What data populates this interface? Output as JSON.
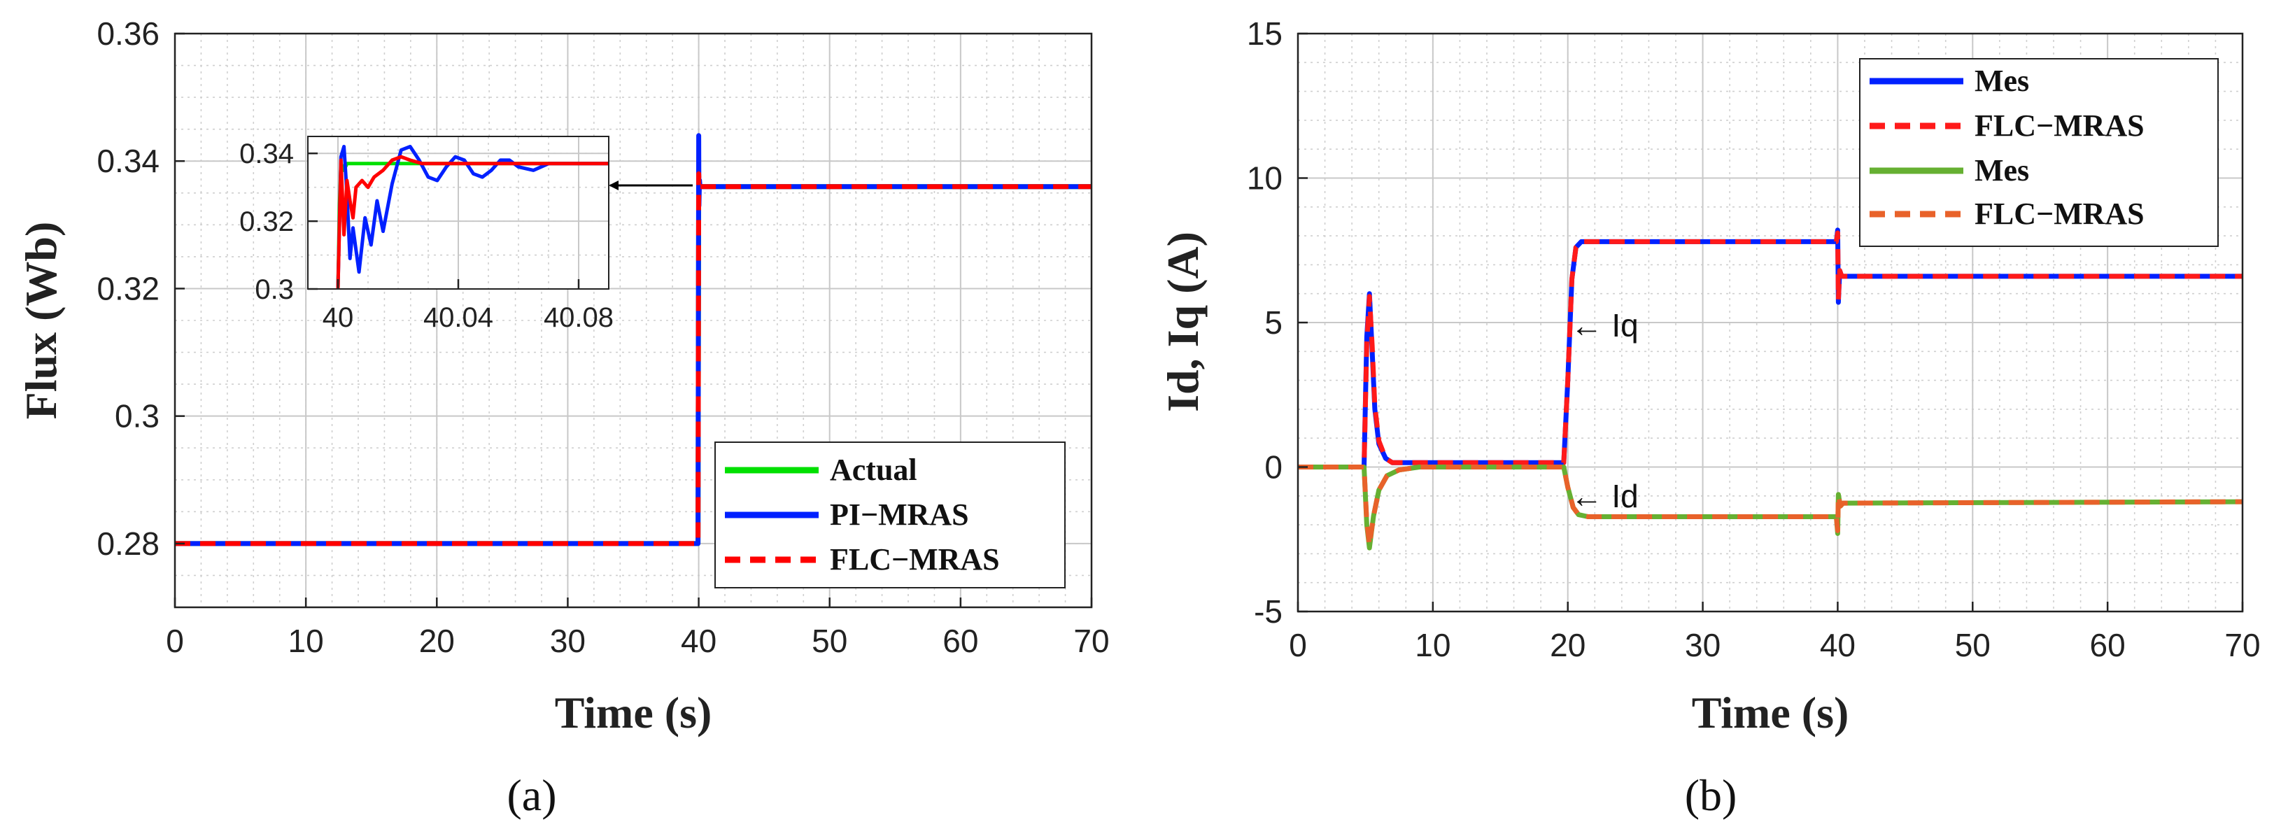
{
  "chart_data": [
    {
      "type": "line",
      "panel_label": "(a)",
      "xlabel": "Time (s)",
      "ylabel": "Flux (Wb)",
      "xlim": [
        0,
        70
      ],
      "ylim": [
        0.27,
        0.36
      ],
      "xticks": [
        0,
        10,
        20,
        30,
        40,
        50,
        60,
        70
      ],
      "yticks": [
        0.28,
        0.3,
        0.32,
        0.34,
        0.36
      ],
      "ytick_labels": [
        "0.28",
        "0.3",
        "0.32",
        "0.34",
        "0.36"
      ],
      "grid": true,
      "legend_position": "bottom-right",
      "series": [
        {
          "name": "Actual",
          "color": "#00e000",
          "dash": "solid",
          "x": [
            0,
            39.95,
            40.0,
            40.03,
            70
          ],
          "y": [
            0.28,
            0.28,
            0.336,
            0.336,
            0.336
          ]
        },
        {
          "name": "PI−MRAS",
          "color": "#0020ff",
          "dash": "solid",
          "x": [
            0,
            39.95,
            40.0,
            40.02,
            40.06,
            40.1,
            70
          ],
          "y": [
            0.28,
            0.28,
            0.344,
            0.333,
            0.337,
            0.336,
            0.336
          ]
        },
        {
          "name": "FLC−MRAS",
          "color": "#ff0000",
          "dash": "dashed",
          "x": [
            0,
            39.95,
            40.0,
            40.05,
            70
          ],
          "y": [
            0.28,
            0.28,
            0.338,
            0.336,
            0.336
          ]
        }
      ],
      "inset": {
        "xlim": [
          39.99,
          40.09
        ],
        "ylim": [
          0.3,
          0.345
        ],
        "xticks": [
          40,
          40.04,
          40.08
        ],
        "xtick_labels": [
          "40",
          "40.04",
          "40.08"
        ],
        "yticks": [
          0.3,
          0.32,
          0.34
        ],
        "ytick_labels": [
          "0.3",
          "0.32",
          "0.34"
        ],
        "series": [
          {
            "name": "Actual",
            "color": "#00e000",
            "x": [
              40.0,
              40.0005,
              40.001,
              40.002,
              40.003,
              40.09
            ],
            "y": [
              0.3,
              0.325,
              0.337,
              0.335,
              0.337,
              0.337
            ]
          },
          {
            "name": "PI−MRAS",
            "color": "#0020ff",
            "x": [
              40.0,
              40.001,
              40.002,
              40.003,
              40.004,
              40.005,
              40.007,
              40.009,
              40.011,
              40.013,
              40.015,
              40.018,
              40.021,
              40.024,
              40.027,
              40.03,
              40.033,
              40.036,
              40.039,
              40.042,
              40.045,
              40.048,
              40.051,
              40.054,
              40.057,
              40.06,
              40.065,
              40.07,
              40.08,
              40.09
            ],
            "y": [
              0.3,
              0.339,
              0.342,
              0.328,
              0.309,
              0.318,
              0.305,
              0.321,
              0.313,
              0.326,
              0.317,
              0.331,
              0.341,
              0.342,
              0.338,
              0.333,
              0.332,
              0.336,
              0.339,
              0.338,
              0.334,
              0.333,
              0.335,
              0.338,
              0.338,
              0.336,
              0.335,
              0.337,
              0.337,
              0.337
            ]
          },
          {
            "name": "FLC−MRAS",
            "color": "#ff0000",
            "x": [
              40.0,
              40.001,
              40.002,
              40.003,
              40.004,
              40.005,
              40.006,
              40.008,
              40.01,
              40.012,
              40.015,
              40.018,
              40.021,
              40.024,
              40.028,
              40.033,
              40.04,
              40.05,
              40.09
            ],
            "y": [
              0.3,
              0.338,
              0.316,
              0.332,
              0.326,
              0.321,
              0.33,
              0.332,
              0.33,
              0.333,
              0.335,
              0.338,
              0.339,
              0.338,
              0.337,
              0.337,
              0.337,
              0.337,
              0.337
            ]
          }
        ]
      }
    },
    {
      "type": "line",
      "panel_label": "(b)",
      "xlabel": "Time (s)",
      "ylabel": "Id, Iq (A)",
      "xlim": [
        0,
        70
      ],
      "ylim": [
        -5,
        15
      ],
      "xticks": [
        0,
        10,
        20,
        30,
        40,
        50,
        60,
        70
      ],
      "yticks": [
        -5,
        0,
        5,
        10,
        15
      ],
      "ytick_labels": [
        "-5",
        "0",
        "5",
        "10",
        "15"
      ],
      "grid": true,
      "legend_position": "top-right",
      "annotations": [
        {
          "text": "← Iq",
          "x": 20.2,
          "y": 4.9
        },
        {
          "text": "← Id",
          "x": 20.2,
          "y": -1.0
        }
      ],
      "series": [
        {
          "name": "Mes",
          "color": "#0020ff",
          "dash": "solid",
          "x": [
            0,
            4.9,
            5.1,
            5.3,
            5.5,
            5.7,
            6.0,
            6.5,
            7.0,
            8.0,
            19.7,
            20.0,
            20.3,
            20.6,
            21.0,
            39.9,
            40.0,
            40.05,
            40.15,
            40.3,
            70
          ],
          "y": [
            0,
            0,
            4.5,
            6.0,
            4.0,
            2.0,
            0.8,
            0.3,
            0.15,
            0.15,
            0.15,
            3.0,
            6.5,
            7.6,
            7.8,
            7.8,
            8.2,
            5.7,
            6.8,
            6.6,
            6.6
          ]
        },
        {
          "name": "FLC−MRAS",
          "color": "#ff1a1a",
          "dash": "dashed",
          "x": [
            0,
            4.9,
            5.1,
            5.3,
            5.5,
            5.7,
            6.0,
            6.5,
            7.0,
            8.0,
            19.7,
            20.0,
            20.3,
            20.6,
            21.0,
            39.9,
            40.0,
            40.05,
            40.15,
            40.3,
            70
          ],
          "y": [
            0,
            0,
            4.3,
            5.9,
            4.2,
            2.1,
            0.9,
            0.3,
            0.15,
            0.15,
            0.15,
            3.0,
            6.5,
            7.6,
            7.8,
            7.8,
            8.1,
            5.8,
            6.8,
            6.6,
            6.6
          ]
        },
        {
          "name": "Mes",
          "color": "#66b032",
          "dash": "solid",
          "x": [
            0,
            4.9,
            5.1,
            5.3,
            5.6,
            6.0,
            6.6,
            7.5,
            9.0,
            19.7,
            20.0,
            20.4,
            20.8,
            21.5,
            39.9,
            40.0,
            40.05,
            40.2,
            40.4,
            70
          ],
          "y": [
            0,
            0,
            -2.0,
            -2.8,
            -1.7,
            -0.8,
            -0.3,
            -0.1,
            0,
            0,
            -0.7,
            -1.4,
            -1.65,
            -1.72,
            -1.72,
            -2.3,
            -0.95,
            -1.35,
            -1.25,
            -1.2
          ]
        },
        {
          "name": "FLC−MRAS",
          "color": "#e8622a",
          "dash": "dashed",
          "x": [
            0,
            4.9,
            5.1,
            5.3,
            5.6,
            6.0,
            6.6,
            7.5,
            9.0,
            19.7,
            20.0,
            20.4,
            20.8,
            21.5,
            39.9,
            40.0,
            40.05,
            40.2,
            40.4,
            70
          ],
          "y": [
            0,
            0,
            -1.9,
            -2.7,
            -1.7,
            -0.8,
            -0.3,
            -0.1,
            0,
            0,
            -0.7,
            -1.4,
            -1.65,
            -1.72,
            -1.72,
            -2.2,
            -1.0,
            -1.35,
            -1.25,
            -1.2
          ]
        }
      ]
    }
  ]
}
